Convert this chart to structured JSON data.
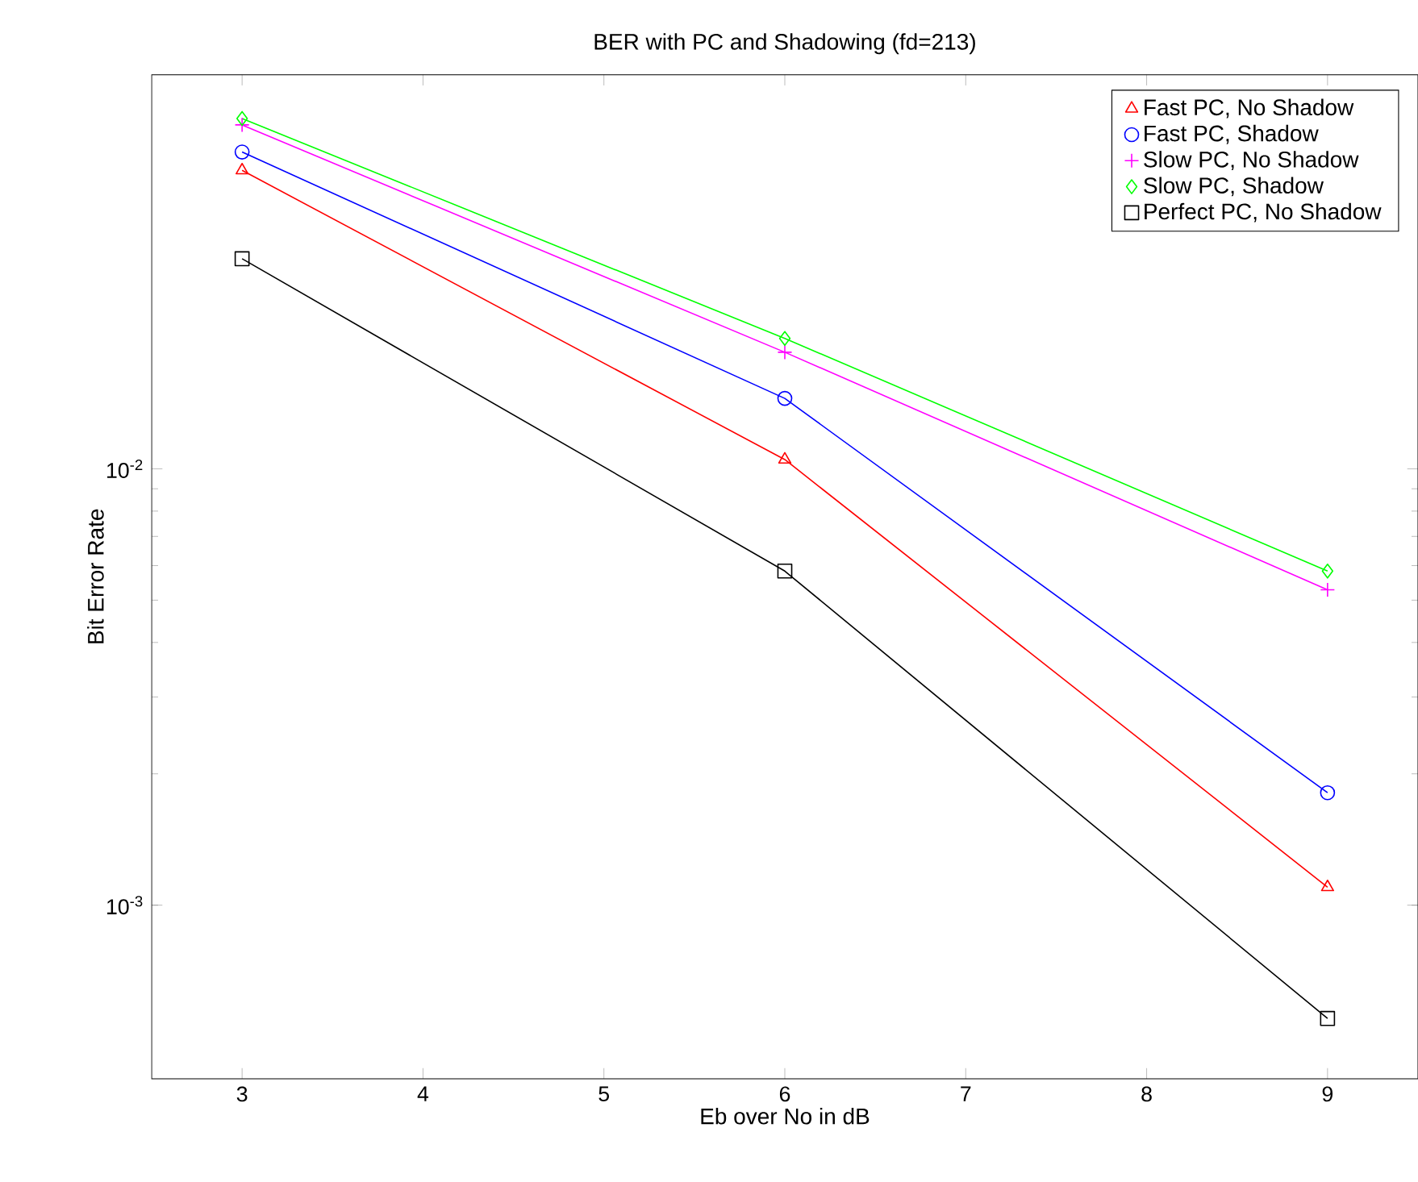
{
  "chart_data": {
    "type": "line",
    "title": "BER with PC and Shadowing (fd=213)",
    "xlabel": "Eb over No in dB",
    "ylabel": "Bit Error Rate",
    "x": [
      3,
      6,
      9
    ],
    "series": [
      {
        "name": "Fast PC, No Shadow",
        "color": "#ff0000",
        "marker": "triangle",
        "values": [
          0.0483,
          0.0105,
          0.0011
        ]
      },
      {
        "name": "Fast PC, Shadow",
        "color": "#0000ff",
        "marker": "circle",
        "values": [
          0.0532,
          0.0145,
          0.00181
        ]
      },
      {
        "name": "Slow PC, No Shadow",
        "color": "#ff00ff",
        "marker": "cross",
        "values": [
          0.0614,
          0.0185,
          0.00528
        ]
      },
      {
        "name": "Slow PC, Shadow",
        "color": "#00ff00",
        "marker": "diamond",
        "values": [
          0.0635,
          0.0199,
          0.00583
        ]
      },
      {
        "name": "Perfect PC, No Shadow",
        "color": "#000000",
        "marker": "square",
        "values": [
          0.0303,
          0.00583,
          0.00055
        ]
      }
    ],
    "xlim": [
      2.5,
      9.5
    ],
    "ylim": [
      0.0004,
      0.08
    ],
    "xticks": [
      3,
      4,
      5,
      6,
      7,
      8,
      9
    ],
    "yticks": [
      {
        "value": 0.001,
        "label": "10$^{-3}$"
      },
      {
        "value": 0.01,
        "label": "10$^{-2}$"
      }
    ],
    "log": "y",
    "grid": false,
    "legend": "top right",
    "line_style": "solid"
  }
}
